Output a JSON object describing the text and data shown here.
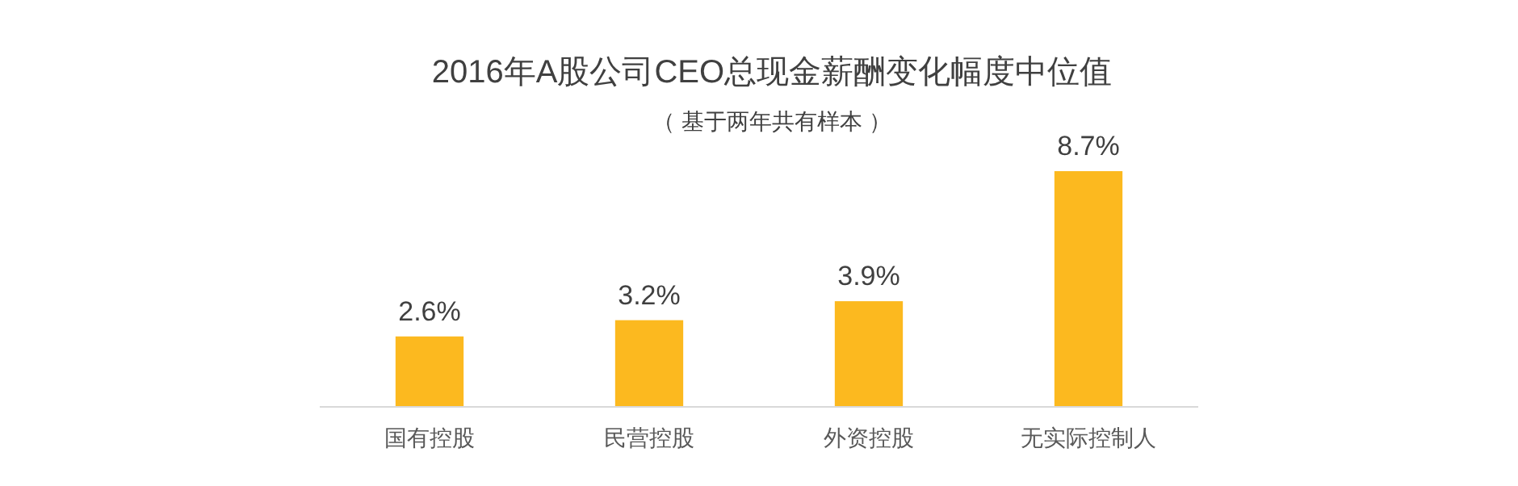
{
  "chart_data": {
    "type": "bar",
    "title": "2016年A股公司CEO总现金薪酬变化幅度中位值",
    "subtitle": "（ 基于两年共有样本 ）",
    "categories": [
      "国有控股",
      "民营控股",
      "外资控股",
      "无实际控制人"
    ],
    "values": [
      2.6,
      3.2,
      3.9,
      8.7
    ],
    "color": "#fcb91f",
    "value_labels": [
      "2.6%",
      "3.2%",
      "3.9%",
      "8.7%"
    ]
  }
}
